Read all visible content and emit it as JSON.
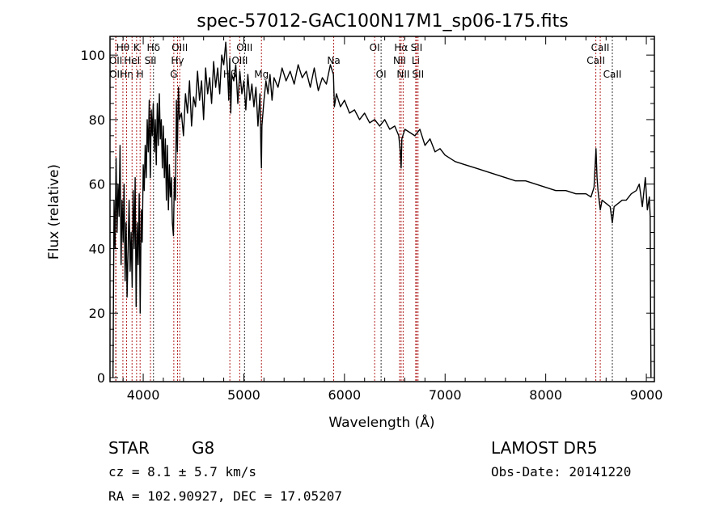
{
  "chart_data": {
    "type": "line",
    "title": "spec-57012-GAC100N17M1_sp06-175.fits",
    "xlabel": "Wavelength (Å)",
    "ylabel": "Flux (relative)",
    "xlim": [
      3670,
      9080
    ],
    "ylim": [
      -1.25,
      105.8
    ],
    "xticks": [
      4000,
      5000,
      6000,
      7000,
      8000,
      9000
    ],
    "xtick_labels": [
      "4000",
      "5000",
      "6000",
      "7000",
      "8000",
      "9000"
    ],
    "yticks": [
      0,
      20,
      40,
      60,
      80,
      100
    ],
    "ytick_labels": [
      "0",
      "20",
      "40",
      "60",
      "80",
      "100"
    ],
    "line_color": "#000000",
    "marker_color": "#b22222",
    "series": [
      {
        "name": "spectrum",
        "x": [
          3700,
          3705,
          3710,
          3720,
          3730,
          3740,
          3750,
          3760,
          3770,
          3780,
          3790,
          3800,
          3810,
          3820,
          3830,
          3840,
          3850,
          3860,
          3870,
          3880,
          3890,
          3900,
          3910,
          3920,
          3930,
          3940,
          3950,
          3960,
          3970,
          3980,
          3990,
          4000,
          4010,
          4020,
          4030,
          4040,
          4050,
          4060,
          4070,
          4080,
          4090,
          4100,
          4110,
          4120,
          4130,
          4140,
          4150,
          4160,
          4170,
          4180,
          4190,
          4200,
          4210,
          4220,
          4230,
          4240,
          4250,
          4260,
          4270,
          4280,
          4290,
          4300,
          4310,
          4320,
          4330,
          4340,
          4350,
          4360,
          4380,
          4400,
          4420,
          4440,
          4460,
          4480,
          4500,
          4520,
          4540,
          4560,
          4580,
          4600,
          4620,
          4640,
          4660,
          4680,
          4700,
          4720,
          4740,
          4760,
          4780,
          4800,
          4820,
          4840,
          4850,
          4860,
          4870,
          4880,
          4900,
          4920,
          4940,
          4960,
          4980,
          5000,
          5020,
          5040,
          5060,
          5080,
          5100,
          5120,
          5140,
          5160,
          5170,
          5175,
          5180,
          5200,
          5220,
          5240,
          5260,
          5280,
          5300,
          5340,
          5380,
          5420,
          5460,
          5500,
          5540,
          5580,
          5620,
          5660,
          5700,
          5740,
          5780,
          5820,
          5860,
          5890,
          5900,
          5920,
          5960,
          6000,
          6050,
          6100,
          6150,
          6200,
          6250,
          6300,
          6350,
          6400,
          6450,
          6500,
          6540,
          6555,
          6563,
          6570,
          6600,
          6650,
          6700,
          6750,
          6800,
          6850,
          6900,
          6950,
          7000,
          7100,
          7200,
          7300,
          7400,
          7500,
          7600,
          7700,
          7800,
          7900,
          8000,
          8100,
          8200,
          8300,
          8400,
          8450,
          8480,
          8500,
          8510,
          8520,
          8542,
          8560,
          8600,
          8640,
          8662,
          8680,
          8720,
          8760,
          8800,
          8850,
          8900,
          8930,
          8960,
          8990,
          9010,
          9030,
          9038,
          9042,
          9046
        ],
        "y": [
          0,
          30,
          55,
          40,
          68,
          45,
          60,
          50,
          72,
          35,
          55,
          42,
          60,
          30,
          48,
          25,
          40,
          55,
          33,
          45,
          28,
          58,
          40,
          62,
          22,
          48,
          35,
          57,
          20,
          52,
          42,
          66,
          58,
          72,
          62,
          80,
          70,
          86,
          62,
          83,
          75,
          85,
          70,
          80,
          66,
          85,
          72,
          88,
          74,
          80,
          65,
          78,
          62,
          74,
          55,
          72,
          52,
          66,
          56,
          62,
          48,
          44,
          62,
          55,
          86,
          70,
          90,
          80,
          82,
          75,
          88,
          82,
          92,
          78,
          87,
          84,
          95,
          86,
          92,
          80,
          96,
          88,
          93,
          85,
          98,
          90,
          96,
          88,
          100,
          97,
          104,
          94,
          86,
          99,
          82,
          94,
          92,
          97,
          85,
          95,
          88,
          92,
          83,
          94,
          86,
          91,
          84,
          90,
          78,
          88,
          70,
          65,
          78,
          86,
          92,
          88,
          94,
          86,
          93,
          90,
          96,
          92,
          95,
          91,
          97,
          93,
          95,
          90,
          96,
          89,
          93,
          91,
          97,
          94,
          84,
          88,
          84,
          86,
          82,
          83,
          80,
          82,
          79,
          80,
          78,
          80,
          77,
          78,
          75,
          70,
          65,
          74,
          77,
          76,
          75,
          77,
          72,
          74,
          70,
          71,
          69,
          67,
          66,
          65,
          64,
          63,
          62,
          61,
          61,
          60,
          59,
          58,
          58,
          57,
          57,
          56,
          59,
          71,
          62,
          58,
          52,
          55,
          54,
          53,
          48,
          53,
          54,
          55,
          55,
          57,
          58,
          60,
          53,
          62,
          52,
          56,
          50,
          22,
          0
        ]
      }
    ],
    "line_markers": [
      {
        "label": "OII",
        "wave": 3727,
        "row": 2,
        "color": "#b22222"
      },
      {
        "label": "OII",
        "wave": 3729,
        "row": 3,
        "color": "#b22222"
      },
      {
        "label": "Hθ",
        "wave": 3798,
        "row": 1,
        "color": "#b22222"
      },
      {
        "label": "Hη",
        "wave": 3835,
        "row": 3,
        "color": "#b22222"
      },
      {
        "label": "HeI",
        "wave": 3889,
        "row": 2,
        "color": "#b22222"
      },
      {
        "label": "K",
        "wave": 3934,
        "row": 1,
        "color": "#b22222"
      },
      {
        "label": "H",
        "wave": 3969,
        "row": 3,
        "color": "#b22222"
      },
      {
        "label": "SII",
        "wave": 4072,
        "row": 2,
        "color": "#b22222"
      },
      {
        "label": "Hδ",
        "wave": 4102,
        "row": 1,
        "color": "#333333"
      },
      {
        "label": "G",
        "wave": 4304,
        "row": 3,
        "color": "#b22222"
      },
      {
        "label": "Hγ",
        "wave": 4341,
        "row": 2,
        "color": "#b22222"
      },
      {
        "label": "OIII",
        "wave": 4363,
        "row": 1,
        "color": "#b22222"
      },
      {
        "label": "Hβ",
        "wave": 4861,
        "row": 3,
        "color": "#b22222"
      },
      {
        "label": "OIII",
        "wave": 4959,
        "row": 2,
        "color": "#b22222"
      },
      {
        "label": "OIII",
        "wave": 5007,
        "row": 1,
        "color": "#333333"
      },
      {
        "label": "Mg",
        "wave": 5175,
        "row": 3,
        "color": "#b22222"
      },
      {
        "label": "Na",
        "wave": 5893,
        "row": 2,
        "color": "#b22222"
      },
      {
        "label": "OI",
        "wave": 6300,
        "row": 1,
        "color": "#b22222"
      },
      {
        "label": "OI",
        "wave": 6364,
        "row": 3,
        "color": "#333333"
      },
      {
        "label": "NII",
        "wave": 6548,
        "row": 2,
        "color": "#b22222"
      },
      {
        "label": "Hα",
        "wave": 6563,
        "row": 1,
        "color": "#b22222"
      },
      {
        "label": "NII",
        "wave": 6583,
        "row": 3,
        "color": "#b22222"
      },
      {
        "label": "Li",
        "wave": 6708,
        "row": 2,
        "color": "#b22222"
      },
      {
        "label": "SII",
        "wave": 6716,
        "row": 1,
        "color": "#b22222"
      },
      {
        "label": "SII",
        "wave": 6731,
        "row": 3,
        "color": "#b22222"
      },
      {
        "label": "CaII",
        "wave": 8498,
        "row": 2,
        "color": "#b22222"
      },
      {
        "label": "CaII",
        "wave": 8542,
        "row": 1,
        "color": "#b22222"
      },
      {
        "label": "CaII",
        "wave": 8662,
        "row": 3,
        "color": "#333333"
      }
    ]
  },
  "info": {
    "object_type": "STAR",
    "subclass": "G8",
    "cz": "cz = 8.1 ± 5.7 km/s",
    "coords": "RA = 102.90927, DEC =  17.05207",
    "survey": "LAMOST DR5",
    "obs_date": "Obs-Date: 20141220"
  }
}
